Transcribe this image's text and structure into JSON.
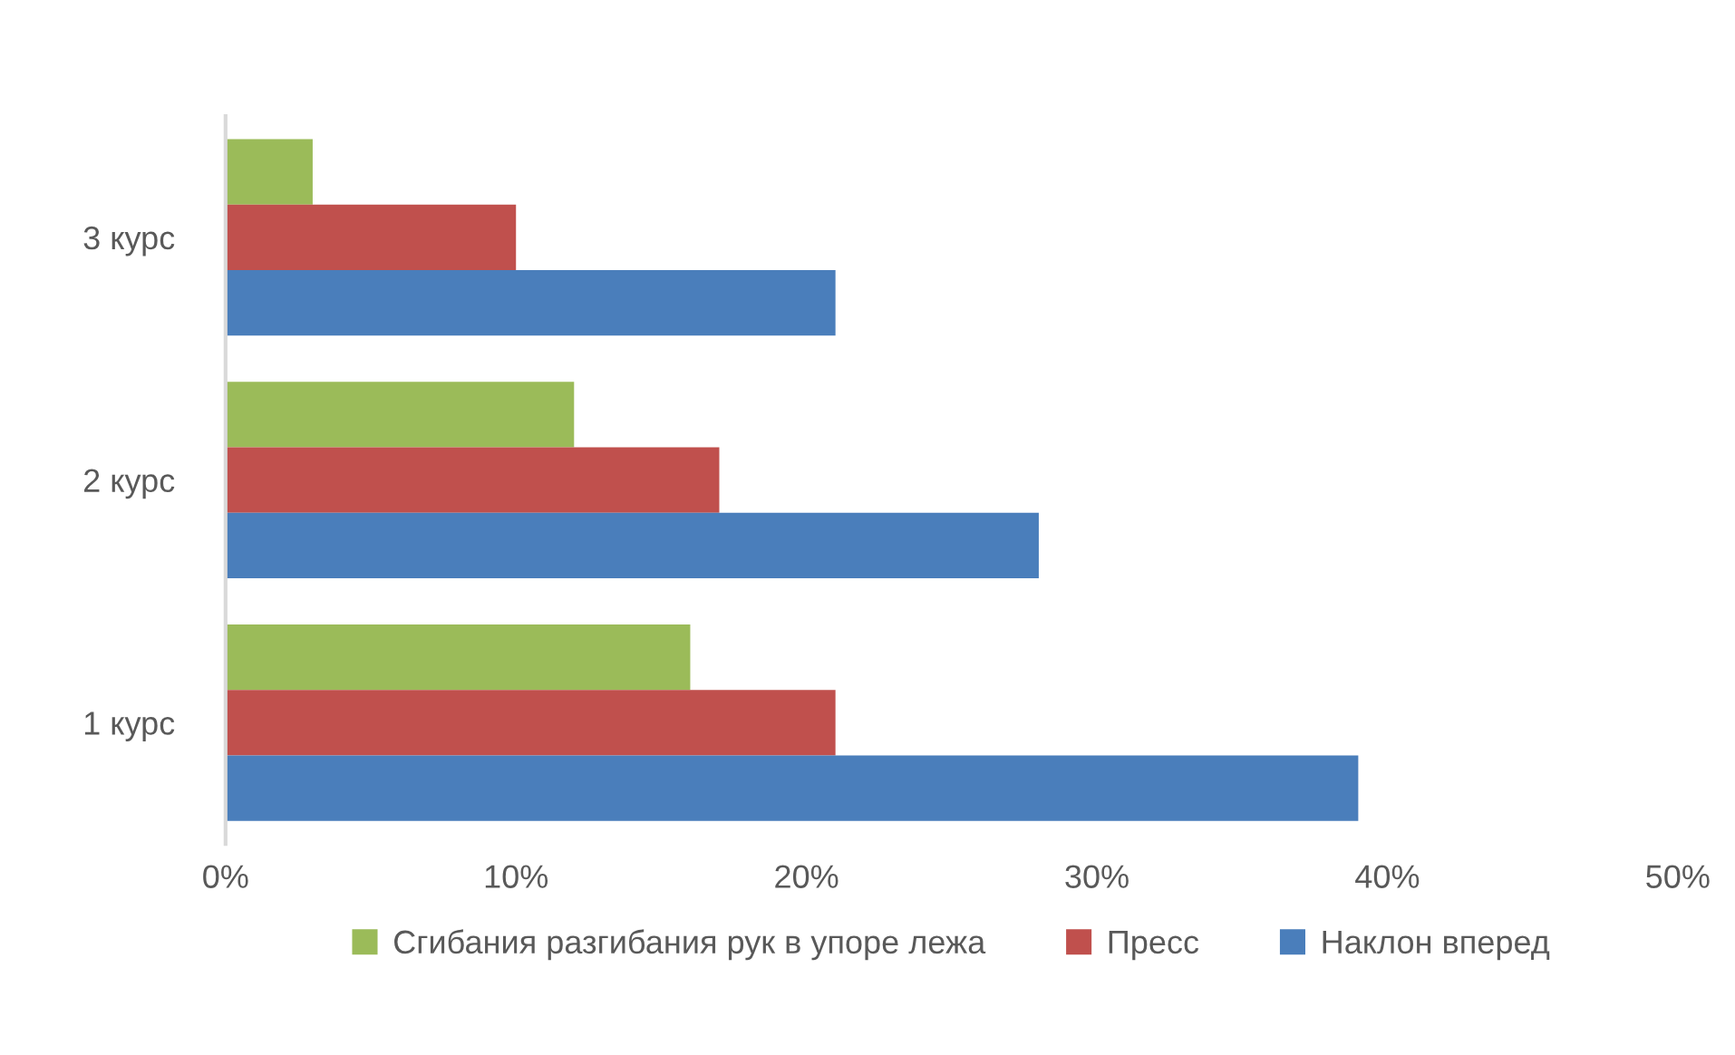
{
  "chart_data": {
    "type": "bar",
    "orientation": "horizontal",
    "categories": [
      "3 курс",
      "2 курс",
      "1 курс"
    ],
    "series": [
      {
        "name": "Сгибания разгибания рук в упоре лежа",
        "color": "#9bbb59",
        "values": [
          3,
          12,
          16
        ]
      },
      {
        "name": "Пресс",
        "color": "#c0504d",
        "values": [
          10,
          17,
          21
        ]
      },
      {
        "name": "Наклон вперед",
        "color": "#4a7ebb",
        "values": [
          21,
          28,
          39
        ]
      }
    ],
    "xlim": [
      0,
      50
    ],
    "xticks": [
      {
        "value": 0,
        "label": "0%"
      },
      {
        "value": 10,
        "label": "10%"
      },
      {
        "value": 20,
        "label": "20%"
      },
      {
        "value": 30,
        "label": "30%"
      },
      {
        "value": 40,
        "label": "40%"
      },
      {
        "value": 50,
        "label": "50%"
      }
    ],
    "grid": false,
    "legend": "bottom"
  }
}
